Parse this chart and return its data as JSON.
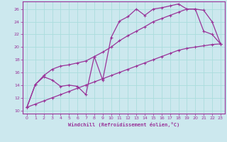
{
  "xlabel": "Windchill (Refroidissement éolien,°C)",
  "bg_color": "#cce8ee",
  "line_color": "#993399",
  "grid_color": "#aadddd",
  "xlim": [
    -0.5,
    23.5
  ],
  "ylim": [
    9.5,
    27.2
  ],
  "yticks": [
    10,
    12,
    14,
    16,
    18,
    20,
    22,
    24,
    26
  ],
  "xticks": [
    0,
    1,
    2,
    3,
    4,
    5,
    6,
    7,
    8,
    9,
    10,
    11,
    12,
    13,
    14,
    15,
    16,
    17,
    18,
    19,
    20,
    21,
    22,
    23
  ],
  "line1_x": [
    0,
    1,
    2,
    3,
    4,
    5,
    6,
    7,
    8,
    9,
    10,
    11,
    12,
    13,
    14,
    15,
    16,
    17,
    18,
    19,
    20,
    21,
    22,
    23
  ],
  "line1_y": [
    10.5,
    14.1,
    15.3,
    14.8,
    13.8,
    14.0,
    13.8,
    12.5,
    18.5,
    14.8,
    21.5,
    24.1,
    24.8,
    26.0,
    25.0,
    26.0,
    26.2,
    26.5,
    26.8,
    26.0,
    26.0,
    22.5,
    22.0,
    20.5
  ],
  "line2_x": [
    0,
    1,
    2,
    3,
    4,
    5,
    6,
    7,
    8,
    9,
    10,
    11,
    12,
    13,
    14,
    15,
    16,
    17,
    18,
    19,
    20,
    21,
    22,
    23
  ],
  "line2_y": [
    10.5,
    14.1,
    15.5,
    16.5,
    17.0,
    17.2,
    17.5,
    17.8,
    18.5,
    19.2,
    20.0,
    21.0,
    21.8,
    22.5,
    23.2,
    24.0,
    24.5,
    25.0,
    25.5,
    26.0,
    26.0,
    25.8,
    24.0,
    20.5
  ],
  "line3_x": [
    0,
    1,
    2,
    3,
    4,
    5,
    6,
    7,
    8,
    9,
    10,
    11,
    12,
    13,
    14,
    15,
    16,
    17,
    18,
    19,
    20,
    21,
    22,
    23
  ],
  "line3_y": [
    10.5,
    11.0,
    11.5,
    12.0,
    12.5,
    13.0,
    13.5,
    14.0,
    14.5,
    15.0,
    15.5,
    16.0,
    16.5,
    17.0,
    17.5,
    18.0,
    18.5,
    19.0,
    19.5,
    19.8,
    20.0,
    20.2,
    20.4,
    20.5
  ]
}
